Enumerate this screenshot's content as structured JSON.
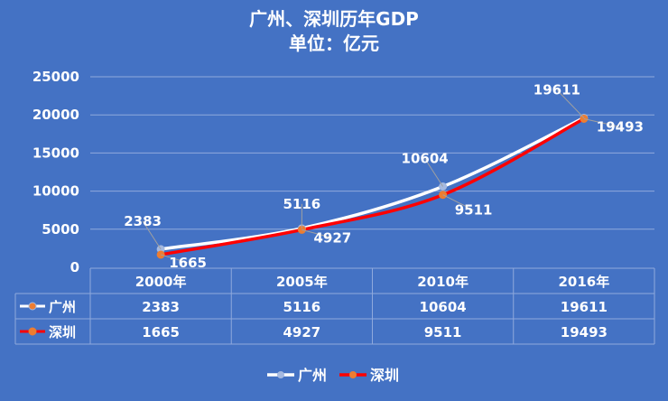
{
  "chart_data": {
    "type": "line",
    "title": "广州、深圳历年GDP",
    "subtitle": "单位：亿元",
    "categories": [
      "2000年",
      "2005年",
      "2010年",
      "2016年"
    ],
    "series": [
      {
        "name": "广州",
        "values": [
          2383,
          5116,
          10604,
          19611
        ],
        "color": "#FFFFFF"
      },
      {
        "name": "深圳",
        "values": [
          1665,
          4927,
          9511,
          19493
        ],
        "color": "#FF0000"
      }
    ],
    "ylim": [
      0,
      25000
    ],
    "yticks": [
      0,
      5000,
      10000,
      15000,
      20000,
      25000
    ],
    "grid": true,
    "data_table": true,
    "legend": "bottom"
  },
  "colors": {
    "background": "#4472C4",
    "guangzhou_line": "#FFFFFF",
    "shenzhen_line": "#FF0000",
    "marker": "#ED7D31"
  }
}
